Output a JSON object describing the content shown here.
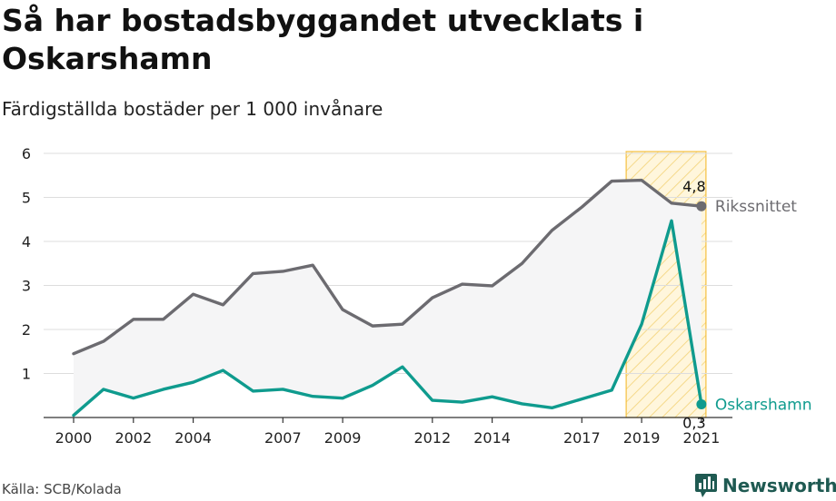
{
  "title": "Så har bostadsbyggandet utvecklats i Oskarshamn",
  "subtitle": "Färdigställda bostäder per 1 000 invånare",
  "source": "Källa: SCB/Kolada",
  "brand": {
    "name": "Newsworthy",
    "icon": "newsworthy-logo-icon",
    "color": "#1f5a52"
  },
  "chart_data": {
    "type": "line",
    "title": "Så har bostadsbyggandet utvecklats i Oskarshamn",
    "subtitle": "Färdigställda bostäder per 1 000 invånare",
    "xlabel": "",
    "ylabel": "",
    "x": [
      2000,
      2001,
      2002,
      2003,
      2004,
      2005,
      2006,
      2007,
      2008,
      2009,
      2010,
      2011,
      2012,
      2013,
      2014,
      2015,
      2016,
      2017,
      2018,
      2019,
      2020,
      2021
    ],
    "xticks": [
      "2000",
      "2002",
      "2004",
      "2007",
      "2009",
      "2012",
      "2014",
      "2017",
      "2019",
      "2021"
    ],
    "yticks": [
      "1",
      "2",
      "3",
      "4",
      "5",
      "6"
    ],
    "ylim": [
      0,
      6.2
    ],
    "grid": true,
    "legend": "inline labels at line ends",
    "highlight_years": [
      2019,
      2021
    ],
    "series": [
      {
        "name": "Rikssnittet",
        "color": "#6c6b70",
        "values": [
          1.45,
          1.73,
          2.23,
          2.23,
          2.8,
          2.56,
          3.27,
          3.32,
          3.46,
          2.45,
          2.08,
          2.12,
          2.72,
          3.03,
          2.99,
          3.5,
          4.25,
          4.78,
          5.37,
          5.39,
          4.87,
          4.8
        ]
      },
      {
        "name": "Oskarshamn",
        "color": "#0f9b8e",
        "values": [
          0.05,
          0.64,
          0.44,
          0.64,
          0.8,
          1.07,
          0.6,
          0.64,
          0.48,
          0.44,
          0.73,
          1.15,
          0.39,
          0.35,
          0.47,
          0.31,
          0.22,
          0.42,
          0.62,
          2.12,
          4.47,
          0.3
        ]
      }
    ],
    "end_labels": [
      "4,8",
      "0,3"
    ]
  }
}
